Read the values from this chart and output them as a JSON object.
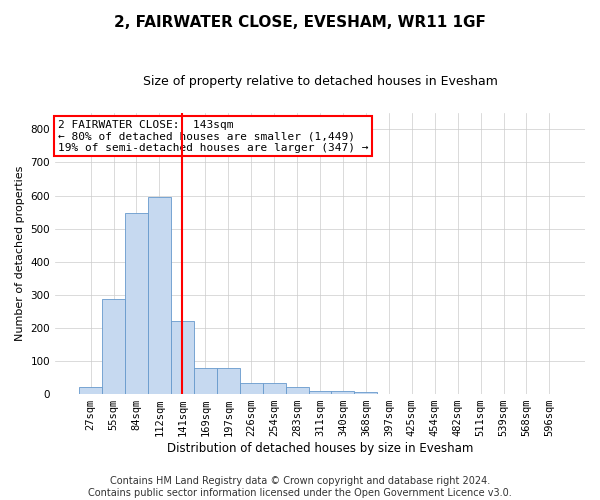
{
  "title": "2, FAIRWATER CLOSE, EVESHAM, WR11 1GF",
  "subtitle": "Size of property relative to detached houses in Evesham",
  "xlabel": "Distribution of detached houses by size in Evesham",
  "ylabel": "Number of detached properties",
  "footer_line1": "Contains HM Land Registry data © Crown copyright and database right 2024.",
  "footer_line2": "Contains public sector information licensed under the Open Government Licence v3.0.",
  "bin_labels": [
    "27sqm",
    "55sqm",
    "84sqm",
    "112sqm",
    "141sqm",
    "169sqm",
    "197sqm",
    "226sqm",
    "254sqm",
    "283sqm",
    "311sqm",
    "340sqm",
    "368sqm",
    "397sqm",
    "425sqm",
    "454sqm",
    "482sqm",
    "511sqm",
    "539sqm",
    "568sqm",
    "596sqm"
  ],
  "bar_values": [
    20,
    288,
    547,
    597,
    222,
    78,
    78,
    35,
    35,
    20,
    10,
    10,
    5,
    0,
    0,
    0,
    0,
    0,
    0,
    0,
    0
  ],
  "bar_color": "#c6d9f0",
  "bar_edge_color": "#6699cc",
  "vline_index": 4,
  "vline_color": "red",
  "annotation_line1": "2 FAIRWATER CLOSE:  143sqm",
  "annotation_line2": "← 80% of detached houses are smaller (1,449)",
  "annotation_line3": "19% of semi-detached houses are larger (347) →",
  "annotation_box_color": "red",
  "annotation_fill_color": "white",
  "ylim": [
    0,
    850
  ],
  "yticks": [
    0,
    100,
    200,
    300,
    400,
    500,
    600,
    700,
    800
  ],
  "grid_color": "#cccccc",
  "background_color": "white",
  "title_fontsize": 11,
  "subtitle_fontsize": 9,
  "ylabel_fontsize": 8,
  "xlabel_fontsize": 8.5,
  "tick_fontsize": 7.5,
  "annotation_fontsize": 8,
  "footer_fontsize": 7
}
